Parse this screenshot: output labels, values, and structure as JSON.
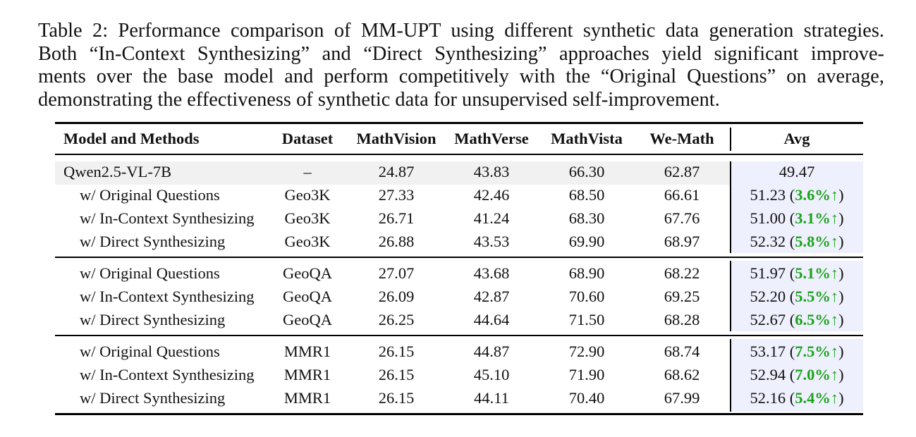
{
  "caption": {
    "lines": [
      "Table 2: Performance comparison of MM-UPT using different synthetic data generation strategies.",
      "Both “In-Context Synthesizing” and “Direct Synthesizing” approaches yield significant improve-",
      "ments over the base model and perform competitively with the “Original Questions” on average,",
      "demonstrating the effectiveness of synthetic data for unsupervised self-improvement."
    ]
  },
  "table": {
    "headers": [
      "Model and Methods",
      "Dataset",
      "MathVision",
      "MathVerse",
      "MathVista",
      "We-Math",
      "Avg"
    ],
    "base": {
      "method": "Qwen2.5-VL-7B",
      "dataset": "–",
      "mathvision": "24.87",
      "mathverse": "43.83",
      "mathvista": "66.30",
      "wemath": "62.87",
      "avg": "49.47"
    },
    "rows": [
      {
        "method": "w/ Original Questions",
        "dataset": "Geo3K",
        "mathvision": "27.33",
        "mathverse": "42.46",
        "mathvista": "68.50",
        "wemath": "66.61",
        "avg": "51.23",
        "gain": "3.6%"
      },
      {
        "method": "w/ In-Context Synthesizing",
        "dataset": "Geo3K",
        "mathvision": "26.71",
        "mathverse": "41.24",
        "mathvista": "68.30",
        "wemath": "67.76",
        "avg": "51.00",
        "gain": "3.1%"
      },
      {
        "method": "w/ Direct Synthesizing",
        "dataset": "Geo3K",
        "mathvision": "26.88",
        "mathverse": "43.53",
        "mathvista": "69.90",
        "wemath": "68.97",
        "avg": "52.32",
        "gain": "5.8%"
      },
      {
        "method": "w/ Original Questions",
        "dataset": "GeoQA",
        "mathvision": "27.07",
        "mathverse": "43.68",
        "mathvista": "68.90",
        "wemath": "68.22",
        "avg": "51.97",
        "gain": "5.1%"
      },
      {
        "method": "w/ In-Context Synthesizing",
        "dataset": "GeoQA",
        "mathvision": "26.09",
        "mathverse": "42.87",
        "mathvista": "70.60",
        "wemath": "69.25",
        "avg": "52.20",
        "gain": "5.5%"
      },
      {
        "method": "w/ Direct Synthesizing",
        "dataset": "GeoQA",
        "mathvision": "26.25",
        "mathverse": "44.64",
        "mathvista": "71.50",
        "wemath": "68.28",
        "avg": "52.67",
        "gain": "6.5%"
      },
      {
        "method": "w/ Original Questions",
        "dataset": "MMR1",
        "mathvision": "26.15",
        "mathverse": "44.87",
        "mathvista": "72.90",
        "wemath": "68.74",
        "avg": "53.17",
        "gain": "7.5%"
      },
      {
        "method": "w/ In-Context Synthesizing",
        "dataset": "MMR1",
        "mathvision": "26.15",
        "mathverse": "45.10",
        "mathvista": "71.90",
        "wemath": "68.62",
        "avg": "52.94",
        "gain": "7.0%"
      },
      {
        "method": "w/ Direct Synthesizing",
        "dataset": "MMR1",
        "mathvision": "26.15",
        "mathverse": "44.11",
        "mathvista": "70.40",
        "wemath": "67.99",
        "avg": "52.16",
        "gain": "5.4%"
      }
    ],
    "gain_arrow": "↑",
    "colors": {
      "gain": "#1aa31a",
      "avg_bg": "#eff0fd",
      "base_bg": "#f1f1f1"
    }
  }
}
